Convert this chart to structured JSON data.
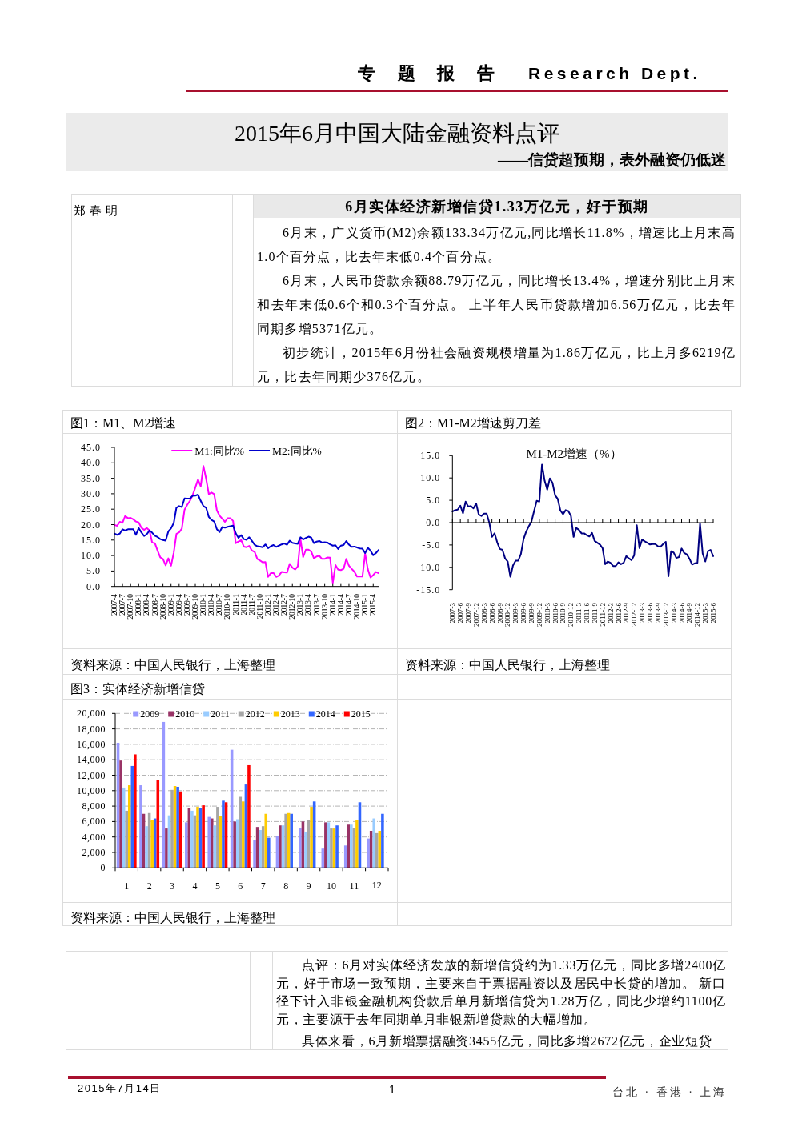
{
  "chart_data": [
    {
      "type": "other",
      "title": "2015年6月中国大陆金融资料点评",
      "subtitle": "——信贷超预期，表外融资仍低迷",
      "annotations": [
        "专 题 报 告",
        "Research Dept."
      ]
    },
    {
      "type": "other",
      "title": "6月实体经济新增信贷1.33万亿元，好于预期",
      "annotations": [
        "郑春明",
        "6月末，广义货币(M2)余额133.34万亿元,同比增长11.8%，增速比上月末高1.0个百分点，比去年末低0.4个百分点。",
        "6月末，人民币贷款余额88.79万亿元，同比增长13.4%，增速分别比上月末和去年末低0.6个和0.3个百分点。 上半年人民币贷款增加6.56万亿元，比去年同期多增5371亿元。",
        "初步统计，2015年6月份社会融资规模增量为1.86万亿元，比上月多6219亿元，比去年同期少376亿元。"
      ]
    },
    {
      "type": "line",
      "title": "图1：M1、M2增速",
      "categories": [
        "2007-4",
        null,
        null,
        "2007-7",
        null,
        null,
        "2007-10",
        null,
        null,
        "2008-1",
        null,
        null,
        "2008-4",
        null,
        null,
        "2008-7",
        null,
        null,
        "2008-10",
        null,
        null,
        "2009-1",
        null,
        null,
        "2009-4",
        null,
        null,
        "2009-7",
        null,
        null,
        "2009-10",
        null,
        null,
        "2010-1",
        null,
        null,
        "2010-4",
        null,
        null,
        "2010-7",
        null,
        null,
        "2010-10",
        null,
        null,
        "2011-1",
        null,
        null,
        "2011-4",
        null,
        null,
        "2011-7",
        null,
        null,
        "2011-10",
        null,
        null,
        "2012-1",
        null,
        null,
        "2012-4",
        null,
        null,
        "2012-7",
        null,
        null,
        "2012-10",
        null,
        null,
        "2013-1",
        null,
        null,
        "2013-4",
        null,
        null,
        "2013-7",
        null,
        null,
        "2013-10",
        null,
        null,
        "2014-1",
        null,
        null,
        "2014-4",
        null,
        null,
        "2014-7",
        null,
        null,
        "2014-10",
        null,
        null,
        "2015-1",
        null,
        null,
        "2015-4",
        null,
        null
      ],
      "series": [
        {
          "name": "M1:同比%",
          "color": "#ff00ff",
          "values": [
            19.9,
            19.6,
            20.9,
            20.6,
            22.8,
            22.1,
            22.2,
            21.7,
            21.0,
            20.7,
            19.0,
            18.3,
            18.9,
            18.1,
            14.2,
            14.0,
            11.6,
            9.4,
            8.9,
            6.8,
            9.1,
            6.7,
            10.9,
            17.0,
            17.5,
            18.7,
            24.8,
            26.4,
            27.7,
            29.5,
            32.0,
            34.6,
            32.4,
            39.0,
            34.9,
            29.9,
            30.4,
            29.9,
            24.6,
            22.9,
            21.9,
            20.9,
            22.1,
            22.1,
            21.2,
            14.0,
            14.5,
            15.0,
            12.9,
            12.7,
            13.1,
            11.6,
            11.2,
            8.9,
            8.4,
            7.8,
            7.9,
            3.1,
            4.3,
            4.4,
            3.1,
            3.5,
            4.7,
            4.6,
            4.5,
            7.3,
            6.1,
            5.5,
            6.5,
            15.3,
            9.5,
            11.9,
            11.9,
            11.3,
            9.1,
            9.7,
            9.9,
            8.9,
            8.9,
            9.4,
            9.3,
            1.2,
            6.9,
            5.4,
            5.3,
            5.7,
            8.9,
            6.7,
            5.7,
            4.8,
            3.2,
            3.2,
            3.2,
            10.6,
            5.6,
            2.9,
            3.7,
            4.7,
            4.3
          ]
        },
        {
          "name": "M2:同比%",
          "color": "#0000cc",
          "values": [
            17.1,
            16.7,
            17.1,
            18.5,
            18.1,
            18.5,
            18.5,
            18.5,
            16.7,
            18.9,
            17.5,
            16.3,
            16.9,
            18.1,
            17.4,
            16.4,
            16.0,
            15.3,
            15.0,
            14.8,
            17.8,
            18.8,
            20.5,
            25.5,
            26.0,
            25.7,
            28.5,
            28.4,
            28.5,
            29.3,
            29.4,
            29.7,
            27.7,
            26.0,
            25.5,
            22.5,
            21.5,
            21.0,
            18.5,
            17.6,
            19.2,
            19.0,
            19.3,
            19.5,
            19.7,
            17.2,
            15.7,
            16.6,
            15.3,
            15.1,
            15.9,
            14.7,
            13.5,
            13.0,
            12.9,
            12.7,
            13.6,
            12.4,
            13.0,
            13.4,
            12.8,
            13.2,
            13.6,
            13.9,
            13.5,
            14.8,
            14.1,
            13.9,
            13.8,
            15.9,
            15.2,
            15.7,
            16.1,
            15.8,
            14.0,
            14.5,
            14.7,
            14.2,
            14.3,
            14.2,
            13.6,
            13.2,
            13.3,
            12.1,
            13.2,
            13.4,
            14.7,
            13.5,
            12.8,
            12.9,
            12.6,
            12.3,
            12.2,
            10.8,
            12.5,
            11.6,
            10.1,
            10.8,
            11.8
          ]
        }
      ],
      "ylim": [
        0,
        45
      ],
      "yticks": [
        {
          "value": 0,
          "label": "0.0"
        },
        {
          "value": 5,
          "label": "5.0"
        },
        {
          "value": 10,
          "label": "10.0"
        },
        {
          "value": 15,
          "label": "15.0"
        },
        {
          "value": 20,
          "label": "20.0"
        },
        {
          "value": 25,
          "label": "25.0"
        },
        {
          "value": 30,
          "label": "30.0"
        },
        {
          "value": 35,
          "label": "35.0"
        },
        {
          "value": 40,
          "label": "40.0"
        },
        {
          "value": 45,
          "label": "45.0"
        }
      ],
      "legend": "top",
      "annotations": [
        "资料来源：中国人民银行，上海整理"
      ]
    },
    {
      "type": "line",
      "title": "图2：M1-M2增速剪刀差",
      "subtitle": "M1-M2增速（%）",
      "categories": [
        "2007-3",
        null,
        null,
        "2007-6",
        null,
        null,
        "2007-9",
        null,
        null,
        "2007-12",
        null,
        null,
        "2008-3",
        null,
        null,
        "2008-6",
        null,
        null,
        "2008-9",
        null,
        null,
        "2008-12",
        null,
        null,
        "2009-3",
        null,
        null,
        "2009-6",
        null,
        null,
        "2009-9",
        null,
        null,
        "2009-12",
        null,
        null,
        "2010-3",
        null,
        null,
        "2010-6",
        null,
        null,
        "2010-9",
        null,
        null,
        "2010-12",
        null,
        null,
        "2011-3",
        null,
        null,
        "2011-6",
        null,
        null,
        "2011-9",
        null,
        null,
        "2011-12",
        null,
        null,
        "2012-3",
        null,
        null,
        "2012-6",
        null,
        null,
        "2012-9",
        null,
        null,
        "2012-12",
        null,
        null,
        "2013-3",
        null,
        null,
        "2013-6",
        null,
        null,
        "2013-9",
        null,
        null,
        "2013-12",
        null,
        null,
        "2014-3",
        null,
        null,
        "2014-6",
        null,
        null,
        "2014-9",
        null,
        null,
        "2014-12",
        null,
        null,
        "2015-3",
        null,
        null,
        "2015-6"
      ],
      "series": [
        {
          "color": "#000080",
          "values": [
            2.5,
            2.8,
            2.9,
            3.8,
            2.1,
            4.7,
            3.6,
            3.7,
            3.2,
            4.3,
            1.8,
            1.5,
            2.0,
            2.0,
            0.0,
            -3.2,
            -2.4,
            -4.4,
            -5.9,
            -6.1,
            -8.0,
            -8.7,
            -12.1,
            -9.6,
            -8.5,
            -8.5,
            -7.0,
            -3.7,
            -2.0,
            -0.8,
            0.2,
            2.6,
            4.9,
            4.7,
            13.0,
            9.4,
            7.4,
            9.9,
            8.9,
            6.1,
            5.3,
            2.7,
            1.9,
            2.8,
            2.6,
            1.5,
            -3.2,
            -1.2,
            -1.6,
            -2.4,
            -2.4,
            -2.8,
            -3.1,
            -2.3,
            -4.1,
            -4.5,
            -4.9,
            -5.7,
            -9.3,
            -8.7,
            -9.0,
            -9.7,
            -9.7,
            -8.9,
            -9.3,
            -9.0,
            -7.5,
            -8.0,
            -8.4,
            -7.3,
            -0.6,
            -5.7,
            -3.8,
            -4.2,
            -4.5,
            -4.9,
            -4.8,
            -4.8,
            -5.3,
            -5.4,
            -4.8,
            -4.3,
            -12.0,
            -6.4,
            -6.7,
            -7.9,
            -7.7,
            -5.8,
            -6.8,
            -7.1,
            -8.1,
            -9.4,
            -9.1,
            -9.0,
            -0.2,
            -6.9,
            -8.7,
            -6.4,
            -6.1,
            -7.5
          ]
        }
      ],
      "ylim": [
        -15,
        15
      ],
      "yticks": [
        {
          "value": 15,
          "label": "15.0"
        },
        {
          "value": 10,
          "label": "10.0"
        },
        {
          "value": 5,
          "label": "5.0"
        },
        {
          "value": 0,
          "label": "0.0"
        },
        {
          "value": -5,
          "label": "-5.0"
        },
        {
          "value": -10,
          "label": "-10.0"
        },
        {
          "value": -15,
          "label": "-15.0"
        }
      ],
      "annotations": [
        "资料来源：中国人民银行，上海整理"
      ]
    },
    {
      "type": "bar",
      "title": "图3：实体经济新增信贷",
      "categories": [
        "1",
        "2",
        "3",
        "4",
        "5",
        "6",
        "7",
        "8",
        "9",
        "10",
        "11",
        "12"
      ],
      "series": [
        {
          "name": "2009",
          "color": "#9999ff",
          "values": [
            16200,
            10700,
            18900,
            5900,
            6600,
            15300,
            3600,
            4100,
            5200,
            2500,
            2900,
            3800
          ]
        },
        {
          "name": "2010",
          "color": "#993366",
          "values": [
            13900,
            7000,
            5100,
            7700,
            6400,
            6000,
            5300,
            5500,
            6000,
            5900,
            5600,
            4800
          ]
        },
        {
          "name": "2011",
          "color": "#99ccff",
          "values": [
            10400,
            5400,
            6800,
            7400,
            5500,
            6300,
            4900,
            5500,
            4700,
            5900,
            5600,
            6400
          ]
        },
        {
          "name": "2012",
          "color": "#a6a6a6",
          "values": [
            7400,
            7100,
            10100,
            6800,
            7900,
            9200,
            5400,
            7000,
            6200,
            5100,
            5200,
            4500
          ]
        },
        {
          "name": "2013",
          "color": "#ffcc00",
          "values": [
            10700,
            6200,
            10600,
            7900,
            6700,
            8600,
            7000,
            7100,
            7900,
            5100,
            6200,
            4800
          ]
        },
        {
          "name": "2014",
          "color": "#3366ff",
          "values": [
            13200,
            6400,
            10500,
            7700,
            8700,
            10800,
            3900,
            7000,
            8600,
            5500,
            8500,
            7000
          ]
        },
        {
          "name": "2015",
          "color": "#ff0000",
          "values": [
            14700,
            11400,
            9900,
            8100,
            8500,
            13300,
            null,
            null,
            null,
            null,
            null,
            null
          ]
        }
      ],
      "ylim": [
        0,
        20000
      ],
      "yticks": [
        0,
        {
          "value": 2000,
          "label": "2,000"
        },
        {
          "value": 4000,
          "label": "4,000"
        },
        {
          "value": 6000,
          "label": "6,000"
        },
        {
          "value": 8000,
          "label": "8,000"
        },
        {
          "value": 10000,
          "label": "10,000"
        },
        {
          "value": 12000,
          "label": "12,000"
        },
        {
          "value": 14000,
          "label": "14,000"
        },
        {
          "value": 16000,
          "label": "16,000"
        },
        {
          "value": 18000,
          "label": "18,000"
        },
        {
          "value": 20000,
          "label": "20,000"
        }
      ],
      "grid": "y",
      "legend": "top",
      "annotations": [
        "资料来源：中国人民银行，上海整理"
      ]
    },
    {
      "type": "other",
      "annotations": [
        "点评：6月对实体经济发放的新增信贷约为1.33万亿元，同比多增2400亿元，好于市场一致预期，主要来自于票据融资以及居民中长贷的增加。 新口径下计入非银金融机构贷款后单月新增信贷为1.28万亿，同比少增约1100亿元，主要源于去年同期单月非银新增贷款的大幅增加。",
        "具体来看，6月新增票据融资3455亿元，同比多增2672亿元，企业短贷"
      ]
    },
    {
      "type": "other",
      "annotations": [
        "2015年7月14日",
        "1",
        "台北 · 香港 · 上海"
      ]
    }
  ]
}
